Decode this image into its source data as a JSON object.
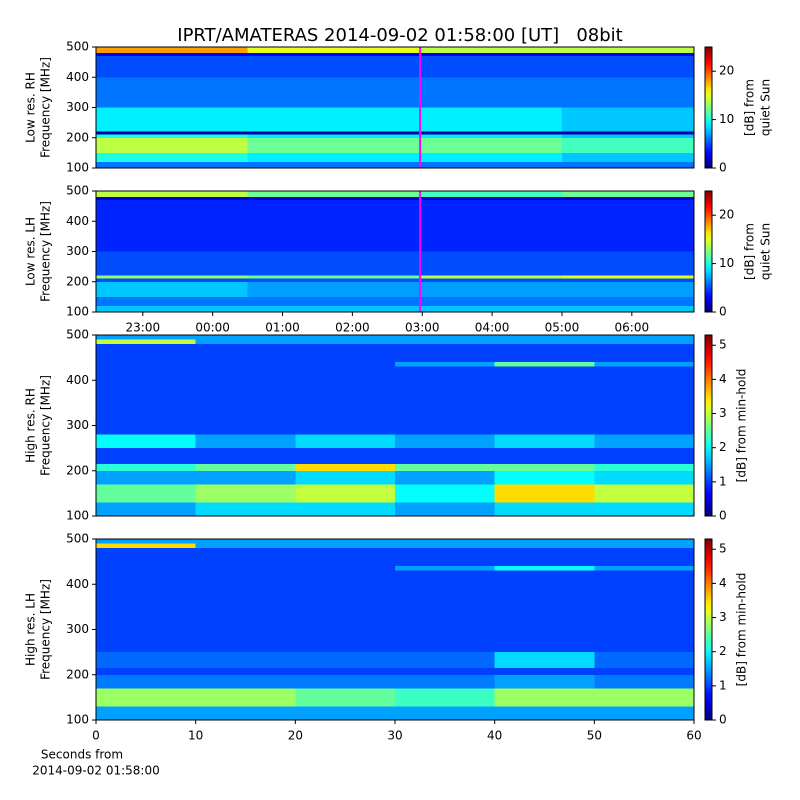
{
  "title": "IPRT/AMATERAS 2014-09-02 01:58:00 [UT]   08bit",
  "chart_data": [
    {
      "type": "heatmap",
      "colormap": "jet",
      "ylabel": [
        "Low res. RH",
        "Frequency [MHz]"
      ],
      "clabel": [
        "[dB] from",
        "quiet Sun"
      ],
      "xlim": [
        22.33,
        30.89
      ],
      "ylim": [
        100,
        500
      ],
      "yticks": [
        100,
        200,
        300,
        400,
        500
      ],
      "clim": [
        0,
        25
      ],
      "cticks": [
        0,
        10,
        20
      ],
      "cursor": {
        "x": 26.97,
        "color": "#ff00ff"
      },
      "x_bins": [
        22.33,
        24.5,
        26.97,
        29,
        30.89
      ],
      "y_bins": [
        100,
        120,
        150,
        200,
        210,
        220,
        300,
        400,
        470,
        480,
        500
      ],
      "z": [
        [
          6,
          6,
          6,
          6
        ],
        [
          10,
          9,
          9,
          8
        ],
        [
          14,
          12,
          12,
          11
        ],
        [
          10,
          9,
          9,
          8
        ],
        [
          1,
          1,
          1,
          1
        ],
        [
          9,
          9,
          9,
          8
        ],
        [
          6,
          6,
          6,
          6
        ],
        [
          5,
          5,
          5,
          5
        ],
        [
          3,
          3,
          3,
          3
        ],
        [
          18,
          15,
          14,
          14
        ]
      ]
    },
    {
      "type": "heatmap",
      "colormap": "jet",
      "ylabel": [
        "Low res. LH",
        "Frequency [MHz]"
      ],
      "clabel": [
        "[dB] from",
        "quiet Sun"
      ],
      "xlim": [
        22.33,
        30.89
      ],
      "xticks": [
        {
          "value": 23,
          "label": "23:00"
        },
        {
          "value": 24,
          "label": "00:00"
        },
        {
          "value": 25,
          "label": "01:00"
        },
        {
          "value": 26,
          "label": "02:00"
        },
        {
          "value": 27,
          "label": "03:00"
        },
        {
          "value": 28,
          "label": "04:00"
        },
        {
          "value": 29,
          "label": "05:00"
        },
        {
          "value": 30,
          "label": "06:00"
        }
      ],
      "ylim": [
        100,
        500
      ],
      "yticks": [
        100,
        200,
        300,
        400,
        500
      ],
      "clim": [
        0,
        25
      ],
      "cticks": [
        0,
        10,
        20
      ],
      "cursor": {
        "x": 26.97,
        "color": "#ff00ff"
      },
      "x_bins": [
        22.33,
        24.5,
        26.97,
        29,
        30.89
      ],
      "y_bins": [
        100,
        120,
        150,
        200,
        210,
        220,
        300,
        400,
        470,
        480,
        500
      ],
      "z": [
        [
          8,
          8,
          8,
          8
        ],
        [
          6,
          6,
          6,
          6
        ],
        [
          8,
          7,
          7,
          7
        ],
        [
          5,
          5,
          5,
          5
        ],
        [
          13,
          12,
          14,
          15
        ],
        [
          5,
          5,
          5,
          5
        ],
        [
          4,
          4,
          4,
          4
        ],
        [
          4,
          4,
          4,
          4
        ],
        [
          2,
          2,
          2,
          2
        ],
        [
          14,
          12,
          11,
          12
        ]
      ]
    },
    {
      "type": "heatmap",
      "colormap": "jet",
      "ylabel": [
        "High res. RH",
        "Frequency [MHz]"
      ],
      "clabel": [
        "[dB] from min-hold"
      ],
      "xlim": [
        0,
        60
      ],
      "ylim": [
        100,
        500
      ],
      "yticks": [
        100,
        200,
        300,
        400,
        500
      ],
      "clim": [
        0,
        5.3
      ],
      "cticks": [
        0,
        1,
        2,
        3,
        4,
        5
      ],
      "x_bins": [
        0,
        10,
        20,
        30,
        40,
        50,
        60
      ],
      "y_bins": [
        100,
        130,
        170,
        200,
        215,
        250,
        280,
        430,
        440,
        480,
        490,
        500
      ],
      "z": [
        [
          1.5,
          1.8,
          1.8,
          1.5,
          1.8,
          1.8
        ],
        [
          2.5,
          2.8,
          3,
          2,
          3.5,
          3
        ],
        [
          1.5,
          1.5,
          1.8,
          1.5,
          2,
          1.8
        ],
        [
          2.2,
          2.5,
          3.5,
          2.5,
          2.5,
          2.2
        ],
        [
          1,
          1,
          1,
          1,
          1,
          1
        ],
        [
          2,
          1.5,
          1.8,
          1.5,
          1.8,
          1.5
        ],
        [
          1,
          1,
          1,
          1,
          1,
          1
        ],
        [
          1,
          1,
          1,
          1.5,
          2.5,
          1.5
        ],
        [
          1,
          1,
          1,
          1,
          1,
          1
        ],
        [
          3,
          1.5,
          1.5,
          1.5,
          1.5,
          1.5
        ],
        [
          1.5,
          1.5,
          1.5,
          1.5,
          1.5,
          1.5
        ]
      ]
    },
    {
      "type": "heatmap",
      "colormap": "jet",
      "ylabel": [
        "High res. LH",
        "Frequency [MHz]"
      ],
      "clabel": [
        "[dB] from min-hold"
      ],
      "xlabel": [
        "Seconds from",
        "2014-09-02 01:58:00"
      ],
      "xlim": [
        0,
        60
      ],
      "xticks": [
        0,
        10,
        20,
        30,
        40,
        50,
        60
      ],
      "ylim": [
        100,
        500
      ],
      "yticks": [
        100,
        200,
        300,
        400,
        500
      ],
      "clim": [
        0,
        5.3
      ],
      "cticks": [
        0,
        1,
        2,
        3,
        4,
        5
      ],
      "x_bins": [
        0,
        10,
        20,
        30,
        40,
        50,
        60
      ],
      "y_bins": [
        100,
        130,
        170,
        200,
        215,
        250,
        280,
        430,
        440,
        480,
        490,
        500
      ],
      "z": [
        [
          1.5,
          1.5,
          1.5,
          1.5,
          1.5,
          1.5
        ],
        [
          2.8,
          2.8,
          2.5,
          2.3,
          2.8,
          2.8
        ],
        [
          1.3,
          1.3,
          1.3,
          1.3,
          1.5,
          1.3
        ],
        [
          1,
          1,
          1,
          1,
          1,
          1
        ],
        [
          1.2,
          1.2,
          1.2,
          1.2,
          1.8,
          1.2
        ],
        [
          1,
          1,
          1,
          1,
          1,
          1
        ],
        [
          1,
          1,
          1,
          1,
          1,
          1
        ],
        [
          1,
          1,
          1,
          1.5,
          2,
          1.5
        ],
        [
          1,
          1,
          1,
          1,
          1,
          1
        ],
        [
          3.5,
          1.5,
          1.5,
          1.5,
          1.5,
          1.5
        ],
        [
          1.5,
          1.5,
          1.5,
          1.5,
          1.5,
          1.5
        ]
      ]
    }
  ]
}
